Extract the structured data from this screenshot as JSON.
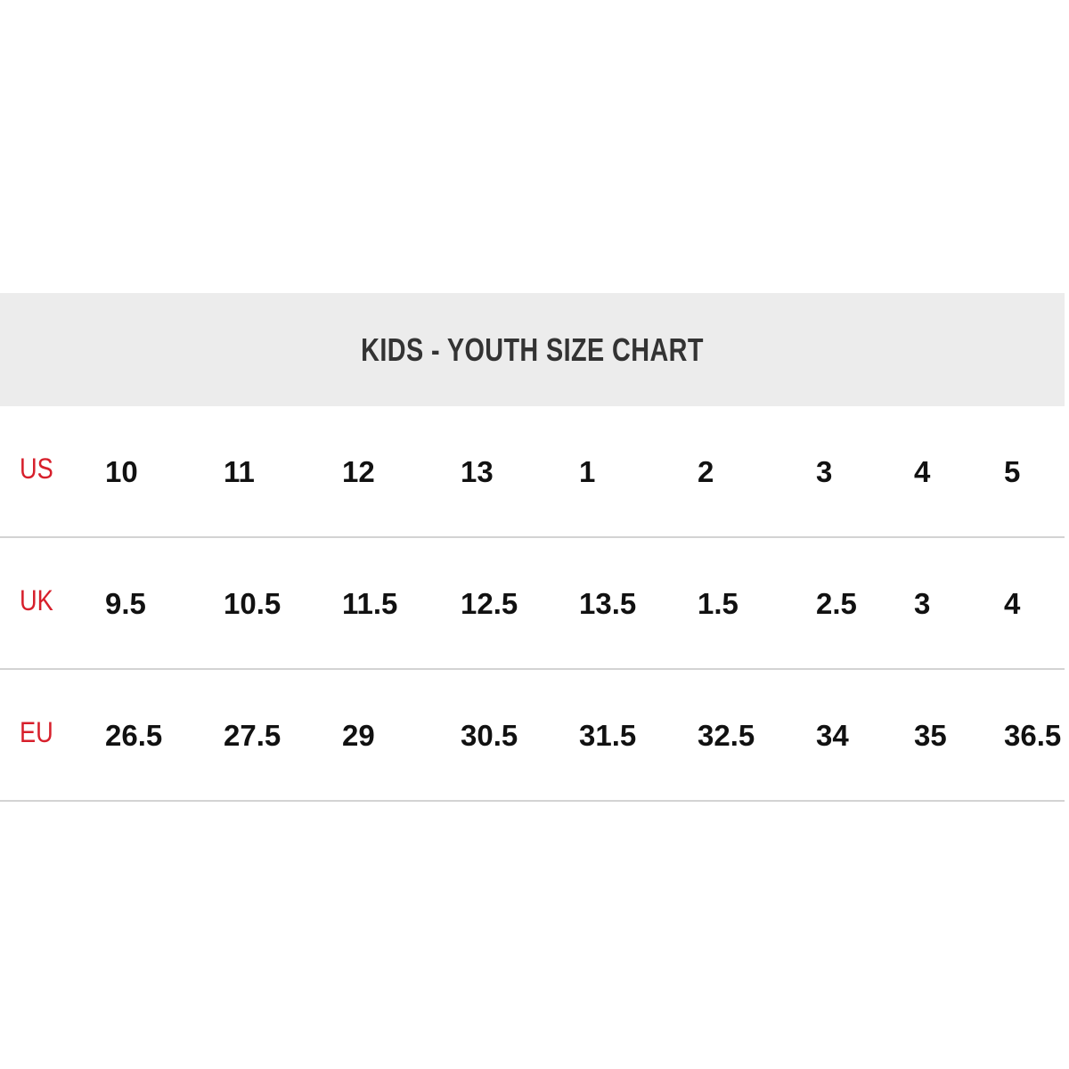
{
  "title": "KIDS - YOUTH SIZE CHART",
  "colors": {
    "label": "#d71f2b",
    "header_bg": "#ececec",
    "text": "#111111"
  },
  "rows": [
    {
      "label": "US",
      "values": [
        "10",
        "11",
        "12",
        "13",
        "1",
        "2",
        "3",
        "4",
        "5"
      ]
    },
    {
      "label": "UK",
      "values": [
        "9.5",
        "10.5",
        "11.5",
        "12.5",
        "13.5",
        "1.5",
        "2.5",
        "3",
        "4"
      ]
    },
    {
      "label": "EU",
      "values": [
        "26.5",
        "27.5",
        "29",
        "30.5",
        "31.5",
        "32.5",
        "34",
        "35",
        "36.5"
      ]
    }
  ]
}
